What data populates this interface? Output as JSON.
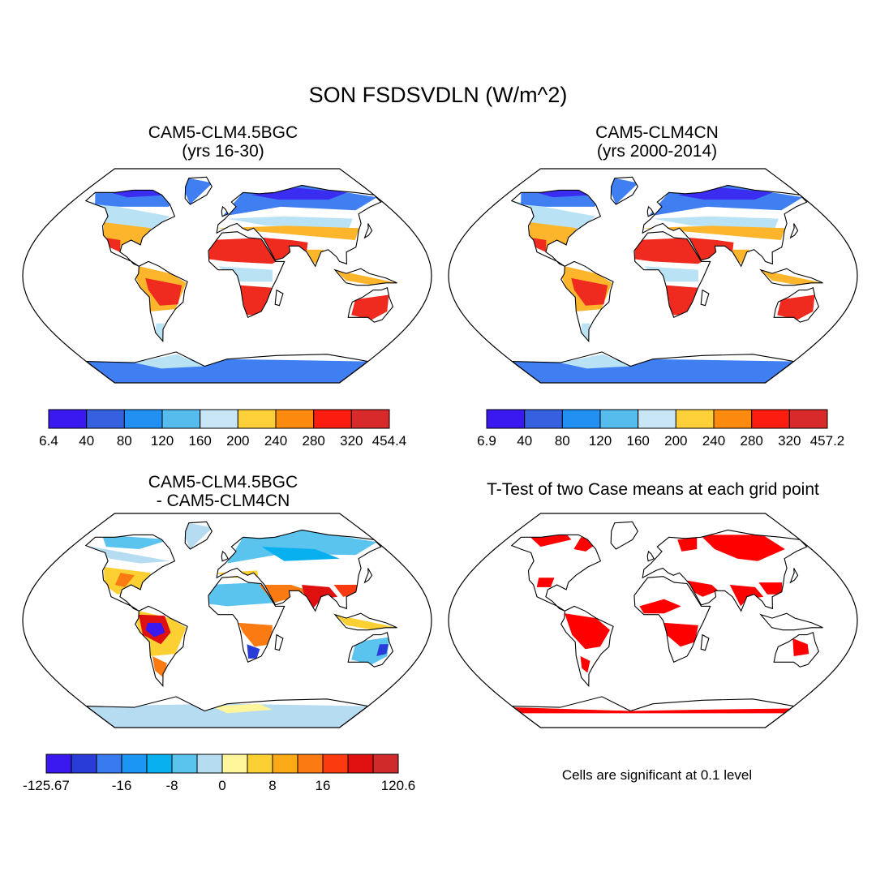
{
  "title": "SON FSDSVDLN (W/m^2)",
  "panels": [
    {
      "title_line1": "CAM5-CLM4.5BGC",
      "title_line2": "(yrs 16-30)",
      "kind": "field",
      "land_color_ramp": {
        "polar": "#3a2cf0",
        "cold": "#3f7ff2",
        "mid": "#b9e2f5",
        "warm": "#fdb62c",
        "hot": "#ef2a1f"
      }
    },
    {
      "title_line1": "CAM5-CLM4CN",
      "title_line2": "(yrs 2000-2014)",
      "kind": "field",
      "land_color_ramp": {
        "polar": "#3a2cf0",
        "cold": "#3f7ff2",
        "mid": "#b9e2f5",
        "warm": "#fdb62c",
        "hot": "#ef2a1f"
      }
    },
    {
      "title_line1": "CAM5-CLM4.5BGC",
      "title_line2": "- CAM5-CLM4CN",
      "kind": "difference"
    },
    {
      "title_line1": "T-Test of two Case means at each grid point",
      "title_line2": "",
      "kind": "significance",
      "significant_color": "#ff0000"
    }
  ],
  "colorbars": [
    {
      "colors": [
        "#3a18f0",
        "#3560e0",
        "#2190f2",
        "#56bcee",
        "#c8e6f6",
        "#fdd03a",
        "#fb8a0e",
        "#fb1d10",
        "#d82a2a"
      ],
      "labels": [
        "6.4",
        "40",
        "80",
        "120",
        "160",
        "200",
        "240",
        "280",
        "320",
        "454.4"
      ]
    },
    {
      "colors": [
        "#3a18f0",
        "#3560e0",
        "#2190f2",
        "#56bcee",
        "#c8e6f6",
        "#fdd03a",
        "#fb8a0e",
        "#fb1d10",
        "#d82a2a"
      ],
      "labels": [
        "6.9",
        "40",
        "80",
        "120",
        "160",
        "200",
        "240",
        "280",
        "320",
        "457.2"
      ]
    },
    {
      "colors": [
        "#3a18f0",
        "#2a3cd8",
        "#3a7af0",
        "#1b96f2",
        "#08b0f0",
        "#5ac3ee",
        "#b5dcf1",
        "#fff59a",
        "#fcd032",
        "#fbaa16",
        "#fb7a12",
        "#fb3a10",
        "#e01010",
        "#d02a2a"
      ],
      "labels": [
        "-125.67",
        "-16",
        "-8",
        "0",
        "8",
        "16",
        "120.6"
      ],
      "label_boundaries": [
        0,
        3,
        5,
        7,
        9,
        11,
        14
      ]
    }
  ],
  "significance_note": "Cells are significant at 0.1 level"
}
